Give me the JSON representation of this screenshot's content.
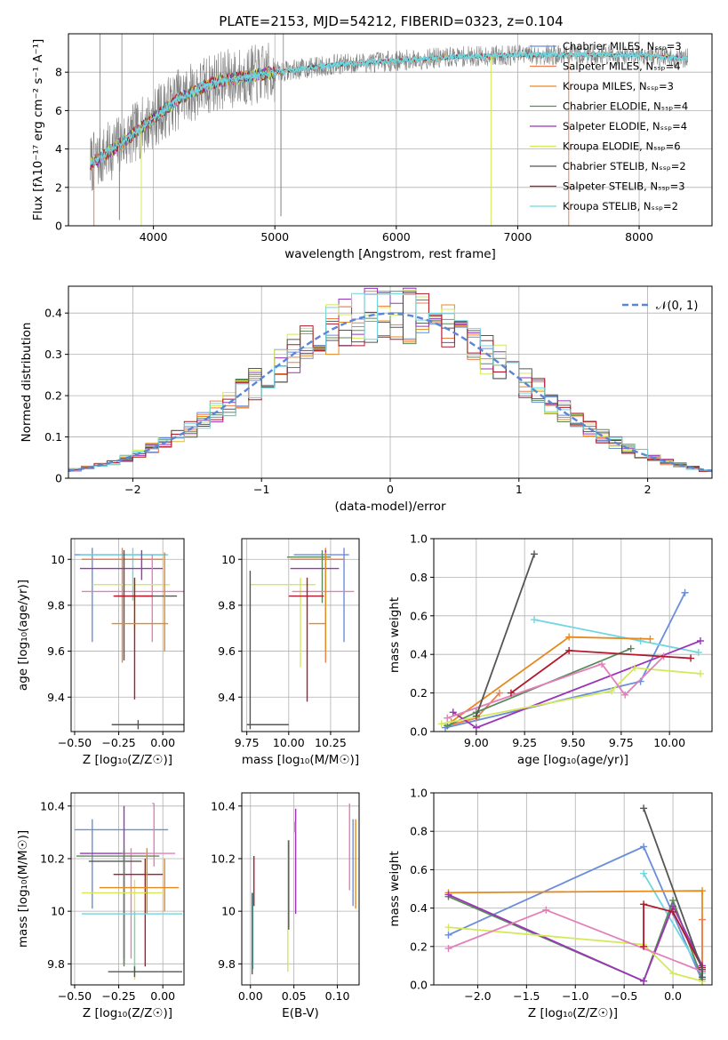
{
  "title": "PLATE=2153, MJD=54212, FIBERID=0323, z=0.104",
  "legend_ssp": [
    {
      "label": "Chabrier MILES, N_SSP=3",
      "color": "#6a8ed9"
    },
    {
      "label": "Salpeter MILES, N_SSP=4",
      "color": "#ee7f4d"
    },
    {
      "label": "Kroupa MILES, N_SSP=3",
      "color": "#e58a20"
    },
    {
      "label": "Chabrier ELODIE, N_SSP=4",
      "color": "#5a8a5a"
    },
    {
      "label": "Salpeter ELODIE, N_SSP=4",
      "color": "#9b35b8"
    },
    {
      "label": "Kroupa ELODIE, N_SSP=6",
      "color": "#d4e85a"
    },
    {
      "label": "Chabrier STELIB, N_SSP=2",
      "color": "#555555"
    },
    {
      "label": "Salpeter STELIB, N_SSP=3",
      "color": "#b2182b"
    },
    {
      "label": "Kroupa STELIB, N_SSP=2",
      "color": "#6fd6df"
    }
  ],
  "chart_data": [
    {
      "id": "spectrum",
      "type": "line",
      "xlabel": "wavelength [Angstrom, rest frame]",
      "ylabel": "Flux [fλ10⁻¹⁷ erg cm⁻² s⁻¹ A⁻¹]",
      "xlim": [
        3300,
        8600
      ],
      "ylim": [
        0,
        10
      ],
      "xticks": [
        4000,
        5000,
        6000,
        7000,
        8000
      ],
      "yticks": [
        0,
        2,
        4,
        6,
        8
      ],
      "data_color": "#808080",
      "model_color": "#6fd6df",
      "continuum": {
        "x": [
          3480,
          3600,
          3800,
          4000,
          4200,
          4500,
          5000,
          5500,
          6000,
          6500,
          7000,
          7500,
          8000,
          8400
        ],
        "y": [
          3.2,
          3.7,
          4.6,
          5.6,
          6.6,
          7.5,
          8.0,
          8.4,
          8.6,
          8.8,
          8.9,
          8.9,
          8.9,
          8.7
        ]
      },
      "dips": [
        {
          "x": 3510,
          "y": 0.0,
          "color": "#ee7f4d"
        },
        {
          "x": 3720,
          "y": 0.3,
          "color": "#808080"
        },
        {
          "x": 3900,
          "y": 0.0,
          "color": "#d4e85a"
        },
        {
          "x": 5050,
          "y": 0.5,
          "color": "#808080"
        },
        {
          "x": 6780,
          "y": 0.0,
          "color": "#d4e85a"
        },
        {
          "x": 7420,
          "y": 0.0,
          "color": "#ee7f4d"
        }
      ],
      "spikes": [
        {
          "x": 3560,
          "y": 10.0
        },
        {
          "x": 3740,
          "y": 10.0
        },
        {
          "x": 5070,
          "y": 10.0
        }
      ]
    },
    {
      "id": "residuals",
      "type": "histogram",
      "xlabel": "(data-model)/error",
      "ylabel": "Normed distribution",
      "xlim": [
        -2.5,
        2.5
      ],
      "ylim": [
        0,
        0.465
      ],
      "xticks": [
        -2,
        -1,
        0,
        1,
        2
      ],
      "yticks": [
        0.0,
        0.1,
        0.2,
        0.3,
        0.4
      ],
      "bin_width": 0.1,
      "legend_label": "𝒩(0, 1)",
      "gaussian_color": "#5b86d6"
    },
    {
      "id": "age_vs_Z",
      "type": "errorbar",
      "xlabel": "Z [log₁₀(Z/Z☉)]",
      "ylabel": "age  [log₁₀(age/yr)]",
      "xlim": [
        -0.52,
        0.12
      ],
      "ylim": [
        9.25,
        10.09
      ],
      "xticks": [
        -0.5,
        -0.25,
        0.0
      ],
      "xtick_labels": [
        "−0.50",
        "−0.25",
        "0.00"
      ],
      "yticks": [
        9.4,
        9.6,
        9.8,
        10.0
      ],
      "points": [
        {
          "x": -0.4,
          "y": 10.02,
          "xerr": [
            0.1,
            0.42
          ],
          "yerr": [
            0.38,
            0.03
          ],
          "color": "#6a8ed9"
        },
        {
          "x": -0.17,
          "y": 10.02,
          "xerr": [
            0.3,
            0.2
          ],
          "yerr": [
            0.2,
            0.03
          ],
          "color": "#6fd6df"
        },
        {
          "x": -0.23,
          "y": 10.0,
          "xerr": [
            0.23,
            0.23
          ],
          "yerr": [
            0.45,
            0.05
          ],
          "color": "#ee7f4d"
        },
        {
          "x": -0.12,
          "y": 9.96,
          "xerr": [
            0.35,
            0.12
          ],
          "yerr": [
            0.05,
            0.08
          ],
          "color": "#9b35b8"
        },
        {
          "x": -0.06,
          "y": 9.86,
          "xerr": [
            0.4,
            0.19
          ],
          "yerr": [
            0.22,
            0.16
          ],
          "color": "#e37fba"
        },
        {
          "x": -0.16,
          "y": 9.89,
          "xerr": [
            0.24,
            0.2
          ],
          "yerr": [
            0.2,
            0.03
          ],
          "color": "#d4e85a"
        },
        {
          "x": -0.22,
          "y": 9.84,
          "xerr": [
            0.05,
            0.3
          ],
          "yerr": [
            0.28,
            0.2
          ],
          "color": "#555555"
        },
        {
          "x": -0.16,
          "y": 9.84,
          "xerr": [
            0.12,
            0.1
          ],
          "yerr": [
            0.45,
            0.08
          ],
          "color": "#b2182b"
        },
        {
          "x": 0.01,
          "y": 9.72,
          "xerr": [
            0.3,
            0.02
          ],
          "yerr": [
            0.12,
            0.31
          ],
          "color": "#e58a20"
        },
        {
          "x": -0.14,
          "y": 9.28,
          "xerr": [
            0.15,
            0.26
          ],
          "yerr": [
            0.02,
            0.02
          ],
          "color": "#555555"
        }
      ]
    },
    {
      "id": "age_vs_mass",
      "type": "errorbar",
      "xlabel": "mass [log₁₀(M/M☉)]",
      "ylabel": "",
      "xlim": [
        9.72,
        10.42
      ],
      "ylim": [
        9.25,
        10.09
      ],
      "xticks": [
        9.75,
        10.0,
        10.25
      ],
      "xtick_labels": [
        "9.75",
        "10.00",
        "10.25"
      ],
      "yticks": [
        9.4,
        9.6,
        9.8,
        10.0
      ],
      "points": [
        {
          "x": 10.33,
          "y": 10.02,
          "xerr": [
            0.3,
            0.03
          ],
          "yerr": [
            0.38,
            0.03
          ],
          "color": "#6a8ed9"
        },
        {
          "x": 10.22,
          "y": 10.0,
          "xerr": [
            0.21,
            0.11
          ],
          "yerr": [
            0.45,
            0.05
          ],
          "color": "#ee7f4d"
        },
        {
          "x": 10.2,
          "y": 10.01,
          "xerr": [
            0.21,
            0.05
          ],
          "yerr": [
            0.2,
            0.03
          ],
          "color": "#5a8a5a"
        },
        {
          "x": 10.22,
          "y": 9.96,
          "xerr": [
            0.21,
            0.08
          ],
          "yerr": [
            0.05,
            0.08
          ],
          "color": "#9b35b8"
        },
        {
          "x": 10.07,
          "y": 9.89,
          "xerr": [
            0.3,
            0.09
          ],
          "yerr": [
            0.36,
            0.03
          ],
          "color": "#d4e85a"
        },
        {
          "x": 10.22,
          "y": 9.86,
          "xerr": [
            0.2,
            0.17
          ],
          "yerr": [
            0.2,
            0.16
          ],
          "color": "#e37fba"
        },
        {
          "x": 10.11,
          "y": 9.84,
          "xerr": [
            0.11,
            0.1
          ],
          "yerr": [
            0.46,
            0.08
          ],
          "color": "#b2182b"
        },
        {
          "x": 10.22,
          "y": 9.72,
          "xerr": [
            0.1,
            0.0
          ],
          "yerr": [
            0.12,
            0.31
          ],
          "color": "#e58a20"
        },
        {
          "x": 9.77,
          "y": 9.28,
          "xerr": [
            0.02,
            0.23
          ],
          "yerr": [
            0.02,
            0.67
          ],
          "color": "#555555"
        }
      ]
    },
    {
      "id": "massweight_vs_age",
      "type": "line",
      "xlabel": "age  [log₁₀(age/yr)]",
      "ylabel": "mass weight",
      "xlim": [
        8.78,
        10.22
      ],
      "ylim": [
        0,
        1
      ],
      "xticks": [
        9.0,
        9.25,
        9.5,
        9.75,
        10.0
      ],
      "xtick_labels": [
        "9.00",
        "9.25",
        "9.50",
        "9.75",
        "10.00"
      ],
      "yticks": [
        0.0,
        0.2,
        0.4,
        0.6,
        0.8,
        1.0
      ],
      "ytick_labels": [
        "0.0",
        "0.2",
        "0.4",
        "0.6",
        "0.8",
        "1.0"
      ],
      "series": [
        {
          "color": "#6a8ed9",
          "x": [
            8.84,
            9.85,
            10.08
          ],
          "y": [
            0.02,
            0.26,
            0.72
          ]
        },
        {
          "color": "#6fd6df",
          "x": [
            9.3,
            9.85,
            10.15
          ],
          "y": [
            0.58,
            0.47,
            0.41
          ]
        },
        {
          "color": "#e58a20",
          "x": [
            8.87,
            9.48,
            9.9
          ],
          "y": [
            0.05,
            0.49,
            0.48
          ]
        },
        {
          "color": "#ee7f4d",
          "x": [
            8.85,
            9.0,
            9.12
          ],
          "y": [
            0.03,
            0.07,
            0.2
          ]
        },
        {
          "color": "#5a8a5a",
          "x": [
            8.85,
            9.0,
            9.8
          ],
          "y": [
            0.03,
            0.1,
            0.43
          ]
        },
        {
          "color": "#9b35b8",
          "x": [
            8.88,
            9.0,
            10.16
          ],
          "y": [
            0.1,
            0.02,
            0.47
          ]
        },
        {
          "color": "#d4e85a",
          "x": [
            8.82,
            9.7,
            9.82,
            10.16
          ],
          "y": [
            0.04,
            0.21,
            0.33,
            0.3
          ]
        },
        {
          "color": "#e37fba",
          "x": [
            8.85,
            9.65,
            9.77,
            9.97
          ],
          "y": [
            0.07,
            0.35,
            0.19,
            0.39
          ]
        },
        {
          "color": "#b2182b",
          "x": [
            9.18,
            9.48,
            10.11
          ],
          "y": [
            0.2,
            0.42,
            0.38
          ]
        },
        {
          "color": "#555555",
          "x": [
            9.0,
            9.3
          ],
          "y": [
            0.08,
            0.92
          ]
        }
      ]
    },
    {
      "id": "mass_vs_Z",
      "type": "errorbar",
      "xlabel": "Z [log₁₀(Z/Z☉)]",
      "ylabel": "mass [log₁₀(M/M☉)]",
      "xlim": [
        -0.52,
        0.12
      ],
      "ylim": [
        9.72,
        10.45
      ],
      "xticks": [
        -0.5,
        -0.25,
        0.0
      ],
      "xtick_labels": [
        "−0.50",
        "−0.25",
        "0.00"
      ],
      "yticks": [
        9.8,
        10.0,
        10.2,
        10.4
      ],
      "points": [
        {
          "x": -0.4,
          "y": 10.31,
          "xerr": [
            0.1,
            0.43
          ],
          "yerr": [
            0.3,
            0.04
          ],
          "color": "#6a8ed9"
        },
        {
          "x": -0.05,
          "y": 10.41,
          "xerr": [
            0.01,
            0.0
          ],
          "yerr": [
            0.24,
            0.0
          ],
          "color": "#e37fba"
        },
        {
          "x": -0.22,
          "y": 10.22,
          "xerr": [
            0.25,
            0.12
          ],
          "yerr": [
            0.4,
            0.18
          ],
          "color": "#9b35b8"
        },
        {
          "x": -0.18,
          "y": 10.22,
          "xerr": [
            0.05,
            0.25
          ],
          "yerr": [
            0.4,
            0.02
          ],
          "color": "#e37fba"
        },
        {
          "x": -0.22,
          "y": 10.19,
          "xerr": [
            0.2,
            0.1
          ],
          "yerr": [
            0.39,
            0.04
          ],
          "color": "#555555"
        },
        {
          "x": -0.1,
          "y": 10.14,
          "xerr": [
            0.18,
            0.1
          ],
          "yerr": [
            0.35,
            0.06
          ],
          "color": "#b2182b"
        },
        {
          "x": -0.22,
          "y": 10.21,
          "xerr": [
            0.27,
            0.2
          ],
          "yerr": [
            0.42,
            0.03
          ],
          "color": "#5a8a5a"
        },
        {
          "x": -0.16,
          "y": 10.07,
          "xerr": [
            0.3,
            0.16
          ],
          "yerr": [
            0.33,
            0.05
          ],
          "color": "#d4e85a"
        },
        {
          "x": -0.09,
          "y": 10.09,
          "xerr": [
            0.27,
            0.18
          ],
          "yerr": [
            0.1,
            0.15
          ],
          "color": "#e58a20"
        },
        {
          "x": 0.01,
          "y": 10.2,
          "xerr": [
            0.0,
            0.0
          ],
          "yerr": [
            0.2,
            0.0
          ],
          "color": "#e58a20"
        },
        {
          "x": -0.16,
          "y": 9.99,
          "xerr": [
            0.3,
            0.27
          ],
          "yerr": [
            0.22,
            0.01
          ],
          "color": "#6fd6df"
        },
        {
          "x": -0.16,
          "y": 9.77,
          "xerr": [
            0.15,
            0.27
          ],
          "yerr": [
            0.02,
            0.02
          ],
          "color": "#555555"
        }
      ]
    },
    {
      "id": "mass_vs_ebv",
      "type": "errorbar",
      "xlabel": "E(B-V)",
      "ylabel": "",
      "xlim": [
        -0.01,
        0.125
      ],
      "ylim": [
        9.72,
        10.45
      ],
      "xticks": [
        0.0,
        0.05,
        0.1
      ],
      "xtick_labels": [
        "0.00",
        "0.05",
        "0.10"
      ],
      "yticks": [
        9.8,
        10.0,
        10.2,
        10.4
      ],
      "points": [
        {
          "x": 0.003,
          "y": 10.07,
          "yerr": [
            0.29,
            0.0
          ],
          "color": "#6fd6df"
        },
        {
          "x": 0.004,
          "y": 10.02,
          "yerr": [
            0.0,
            0.19
          ],
          "color": "#b2182b"
        },
        {
          "x": 0.002,
          "y": 9.99,
          "yerr": [
            0.23,
            0.08
          ],
          "color": "#555555"
        },
        {
          "x": 0.043,
          "y": 10.27,
          "yerr": [
            0.5,
            0.0
          ],
          "color": "#d4e85a"
        },
        {
          "x": 0.044,
          "y": 10.2,
          "yerr": [
            0.27,
            0.07
          ],
          "color": "#555555"
        },
        {
          "x": 0.052,
          "y": 10.39,
          "yerr": [
            0.4,
            0.0
          ],
          "color": "#9b35b8"
        },
        {
          "x": 0.051,
          "y": 10.3,
          "yerr": [
            0.0,
            0.04
          ],
          "color": "#e37fba"
        },
        {
          "x": 0.114,
          "y": 10.41,
          "yerr": [
            0.33,
            0.0
          ],
          "color": "#e37fba"
        },
        {
          "x": 0.118,
          "y": 10.35,
          "yerr": [
            0.33,
            0.0
          ],
          "color": "#6a8ed9"
        },
        {
          "x": 0.121,
          "y": 10.19,
          "yerr": [
            0.18,
            0.16
          ],
          "color": "#e58a20"
        }
      ]
    },
    {
      "id": "massweight_vs_Z",
      "type": "line",
      "xlabel": "Z [log₁₀(Z/Z☉)]",
      "ylabel": "mass weight",
      "xlim": [
        -2.45,
        0.4
      ],
      "ylim": [
        0,
        1
      ],
      "xticks": [
        -2.0,
        -1.5,
        -1.0,
        -0.5,
        0.0
      ],
      "xtick_labels": [
        "−2.0",
        "−1.5",
        "−1.0",
        "−0.5",
        "0.0"
      ],
      "yticks": [
        0.0,
        0.2,
        0.4,
        0.6,
        0.8,
        1.0
      ],
      "ytick_labels": [
        "0.0",
        "0.2",
        "0.4",
        "0.6",
        "0.8",
        "1.0"
      ],
      "series": [
        {
          "color": "#6a8ed9",
          "x": [
            -2.3,
            -0.3,
            0.3
          ],
          "y": [
            0.26,
            0.72,
            0.02
          ]
        },
        {
          "color": "#6fd6df",
          "x": [
            -0.3,
            0.3
          ],
          "y": [
            0.58,
            0.06
          ]
        },
        {
          "color": "#e58a20",
          "x": [
            -2.3,
            0.3,
            0.3
          ],
          "y": [
            0.48,
            0.49,
            0.02
          ]
        },
        {
          "color": "#ee7f4d",
          "x": [
            0.3,
            0.3
          ],
          "y": [
            0.34,
            0.07
          ]
        },
        {
          "color": "#5a8a5a",
          "x": [
            -2.3,
            -0.3,
            0.0,
            0.3
          ],
          "y": [
            0.46,
            0.02,
            0.44,
            0.03
          ]
        },
        {
          "color": "#9b35b8",
          "x": [
            -2.3,
            -0.3,
            0.0,
            0.3
          ],
          "y": [
            0.47,
            0.02,
            0.41,
            0.1
          ]
        },
        {
          "color": "#d4e85a",
          "x": [
            -2.3,
            -0.3,
            0.0,
            0.3
          ],
          "y": [
            0.3,
            0.21,
            0.06,
            0.02
          ]
        },
        {
          "color": "#e37fba",
          "x": [
            -2.3,
            -1.3,
            0.3
          ],
          "y": [
            0.19,
            0.39,
            0.07
          ]
        },
        {
          "color": "#b2182b",
          "x": [
            -0.3,
            -0.3,
            0.0,
            0.3
          ],
          "y": [
            0.2,
            0.42,
            0.38,
            0.09
          ]
        },
        {
          "color": "#555555",
          "x": [
            -0.3,
            0.3,
            0.3
          ],
          "y": [
            0.92,
            0.08,
            0.04
          ]
        }
      ]
    }
  ]
}
